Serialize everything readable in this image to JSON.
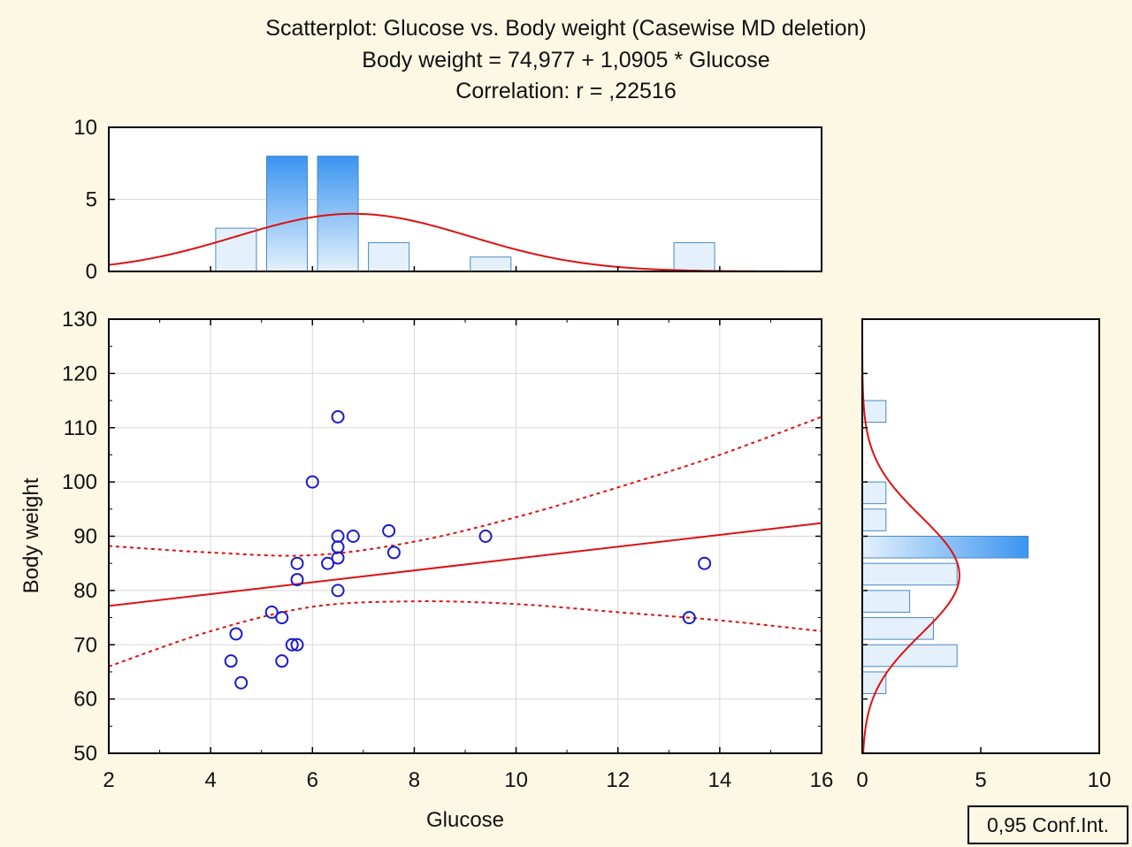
{
  "chart_data": {
    "type": "scatter",
    "title_lines": [
      "Scatterplot: Glucose  vs. Body weight (Casewise MD deletion)",
      "Body weight = 74,977 + 1,0905 * Glucose",
      "Correlation: r = ,22516"
    ],
    "xlabel": "Glucose",
    "ylabel": "Body weight",
    "xlim": [
      2,
      16
    ],
    "ylim": [
      50,
      130
    ],
    "x_ticks": [
      2,
      4,
      6,
      8,
      10,
      12,
      14,
      16
    ],
    "y_ticks": [
      50,
      60,
      70,
      80,
      90,
      100,
      110,
      120,
      130
    ],
    "grid": true,
    "points": [
      {
        "x": 4.4,
        "y": 67
      },
      {
        "x": 4.5,
        "y": 72
      },
      {
        "x": 4.6,
        "y": 63
      },
      {
        "x": 5.2,
        "y": 76
      },
      {
        "x": 5.4,
        "y": 75
      },
      {
        "x": 5.4,
        "y": 67
      },
      {
        "x": 5.6,
        "y": 70
      },
      {
        "x": 5.7,
        "y": 70
      },
      {
        "x": 5.7,
        "y": 82
      },
      {
        "x": 5.7,
        "y": 85
      },
      {
        "x": 6.0,
        "y": 100
      },
      {
        "x": 6.3,
        "y": 85
      },
      {
        "x": 6.5,
        "y": 112
      },
      {
        "x": 6.5,
        "y": 90
      },
      {
        "x": 6.5,
        "y": 88
      },
      {
        "x": 6.5,
        "y": 86
      },
      {
        "x": 6.5,
        "y": 80
      },
      {
        "x": 6.8,
        "y": 90
      },
      {
        "x": 7.5,
        "y": 91
      },
      {
        "x": 7.6,
        "y": 87
      },
      {
        "x": 9.4,
        "y": 90
      },
      {
        "x": 13.4,
        "y": 75
      },
      {
        "x": 13.7,
        "y": 85
      }
    ],
    "regression": {
      "intercept": 74.977,
      "slope": 1.0905
    },
    "confidence_band": {
      "x": [
        2,
        4,
        6,
        8,
        10,
        12,
        14,
        16
      ],
      "upper": [
        88.2,
        87.0,
        86.5,
        89.0,
        93.5,
        99.0,
        105.0,
        112.0
      ],
      "lower": [
        66.0,
        72.5,
        77.0,
        78.0,
        77.5,
        76.0,
        74.5,
        72.5
      ]
    },
    "x_histogram": {
      "ylim": [
        0,
        10
      ],
      "y_ticks": [
        0,
        5,
        10
      ],
      "bins": [
        {
          "x0": 4.1,
          "x1": 4.9,
          "count": 3
        },
        {
          "x0": 5.1,
          "x1": 5.9,
          "count": 8
        },
        {
          "x0": 6.1,
          "x1": 6.9,
          "count": 8
        },
        {
          "x0": 7.1,
          "x1": 7.9,
          "count": 2
        },
        {
          "x0": 9.1,
          "x1": 9.9,
          "count": 1
        },
        {
          "x0": 13.1,
          "x1": 13.9,
          "count": 2
        }
      ],
      "normal_curve": {
        "mean": 6.8,
        "sd": 2.3,
        "peak": 4.0
      }
    },
    "y_histogram": {
      "xlim": [
        0,
        10
      ],
      "x_ticks": [
        0,
        5,
        10
      ],
      "bins": [
        {
          "y0": 61,
          "y1": 65,
          "count": 1
        },
        {
          "y0": 66,
          "y1": 70,
          "count": 4
        },
        {
          "y0": 71,
          "y1": 75,
          "count": 3
        },
        {
          "y0": 76,
          "y1": 80,
          "count": 2
        },
        {
          "y0": 81,
          "y1": 85,
          "count": 4
        },
        {
          "y0": 86,
          "y1": 90,
          "count": 7
        },
        {
          "y0": 91,
          "y1": 95,
          "count": 1
        },
        {
          "y0": 96,
          "y1": 100,
          "count": 1
        },
        {
          "y0": 111,
          "y1": 115,
          "count": 1
        }
      ],
      "normal_curve": {
        "mean": 82.8,
        "sd": 10.8,
        "peak": 4.1
      }
    },
    "legend": {
      "text": "0,95 Conf.Int.",
      "placement": "bottom-right"
    },
    "colors": {
      "background": "#fdf8e4",
      "point": "#1a1acc",
      "fit_line": "#dd1111",
      "bar_light": "#e4f1fc",
      "bar_dark": "#3a94f0",
      "bar_border": "#4a88c6",
      "grid": "#d8d8d8"
    }
  }
}
